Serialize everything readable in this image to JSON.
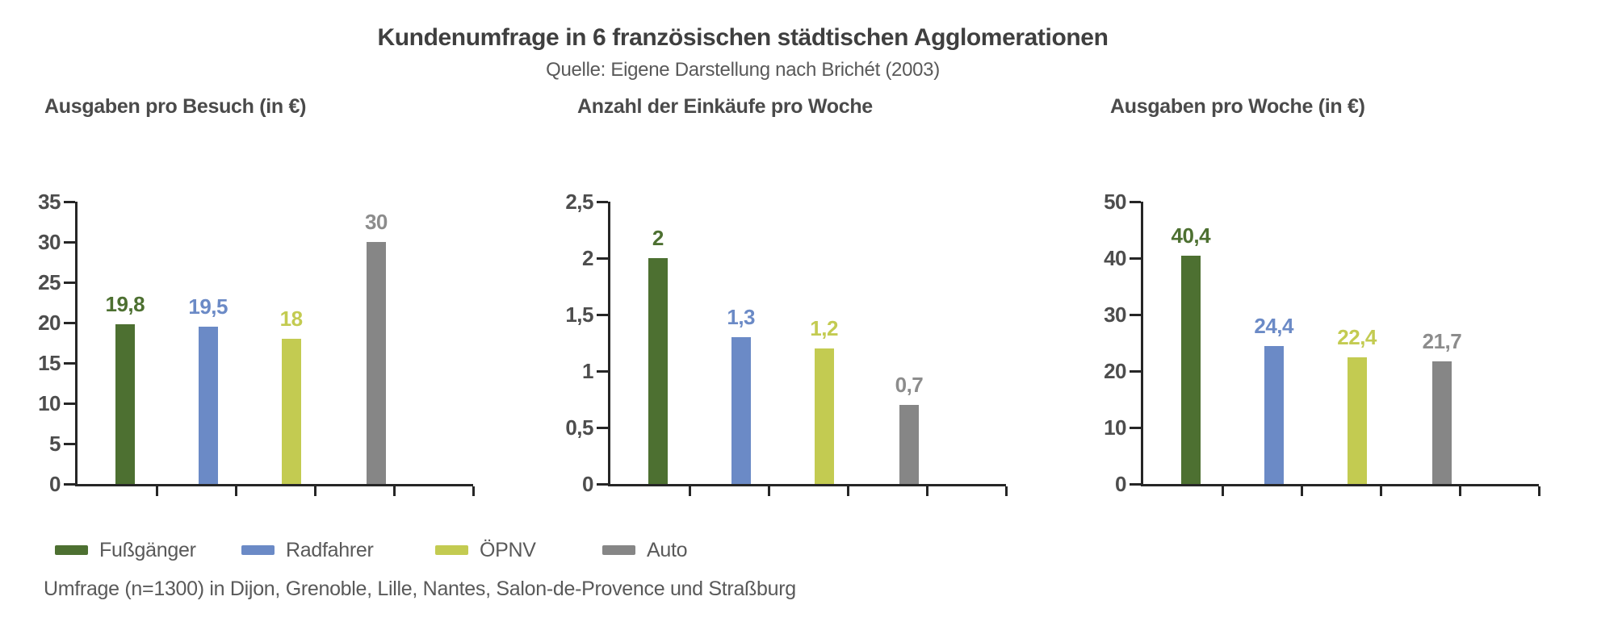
{
  "page": {
    "title": "Kundenumfrage in 6 französischen städtischen Agglomerationen",
    "subtitle": "Quelle: Eigene Darstellung nach Brichét (2003)",
    "footnote": "Umfrage (n=1300) in Dijon, Grenoble, Lille, Nantes, Salon-de-Provence und Straßburg"
  },
  "colors": {
    "axis": "#262626",
    "tick_label": "#4d4d4d",
    "title_text": "#3f3f3f",
    "secondary_text": "#595959"
  },
  "series": [
    {
      "key": "fussgaenger",
      "name": "Fußgänger",
      "color": "#4d7031",
      "label_color": "#4d7031"
    },
    {
      "key": "radfahrer",
      "name": "Radfahrer",
      "color": "#6b8ac6",
      "label_color": "#6b8ac6"
    },
    {
      "key": "oepnv",
      "name": "ÖPNV",
      "color": "#c3cb51",
      "label_color": "#c3cb51"
    },
    {
      "key": "auto",
      "name": "Auto",
      "color": "#868686",
      "label_color": "#8c8c8c"
    }
  ],
  "legend": {
    "items": [
      "Fußgänger",
      "Radfahrer",
      "ÖPNV",
      "Auto"
    ]
  },
  "chart_data": [
    {
      "type": "bar",
      "key": "ausgaben-pro-besuch",
      "title": "Ausgaben pro Besuch (in €)",
      "categories": [
        "Fußgänger",
        "Radfahrer",
        "ÖPNV",
        "Auto"
      ],
      "values": [
        19.8,
        19.5,
        18,
        30
      ],
      "value_labels": [
        "19,8",
        "19,5",
        "18",
        "30"
      ],
      "xlabel": "",
      "ylabel": "",
      "ylim": [
        0,
        35
      ],
      "ytick_values": [
        0,
        5,
        10,
        15,
        20,
        25,
        30,
        35
      ],
      "ytick_labels": [
        "0",
        "5",
        "10",
        "15",
        "20",
        "25",
        "30",
        "35"
      ],
      "grid": false,
      "legend_position": "bottom"
    },
    {
      "type": "bar",
      "key": "einkaeufe-pro-woche",
      "title": "Anzahl der Einkäufe pro Woche",
      "categories": [
        "Fußgänger",
        "Radfahrer",
        "ÖPNV",
        "Auto"
      ],
      "values": [
        2,
        1.3,
        1.2,
        0.7
      ],
      "value_labels": [
        "2",
        "1,3",
        "1,2",
        "0,7"
      ],
      "xlabel": "",
      "ylabel": "",
      "ylim": [
        0,
        2.5
      ],
      "ytick_values": [
        0,
        0.5,
        1,
        1.5,
        2,
        2.5
      ],
      "ytick_labels": [
        "0",
        "0,5",
        "1",
        "1,5",
        "2",
        "2,5"
      ],
      "grid": false,
      "legend_position": "bottom"
    },
    {
      "type": "bar",
      "key": "ausgaben-pro-woche",
      "title": "Ausgaben pro Woche (in €)",
      "categories": [
        "Fußgänger",
        "Radfahrer",
        "ÖPNV",
        "Auto"
      ],
      "values": [
        40.4,
        24.4,
        22.4,
        21.7
      ],
      "value_labels": [
        "40,4",
        "24,4",
        "22,4",
        "21,7"
      ],
      "xlabel": "",
      "ylabel": "",
      "ylim": [
        0,
        50
      ],
      "ytick_values": [
        0,
        10,
        20,
        30,
        40,
        50
      ],
      "ytick_labels": [
        "0",
        "10",
        "20",
        "30",
        "40",
        "50"
      ],
      "grid": false,
      "legend_position": "bottom"
    }
  ]
}
